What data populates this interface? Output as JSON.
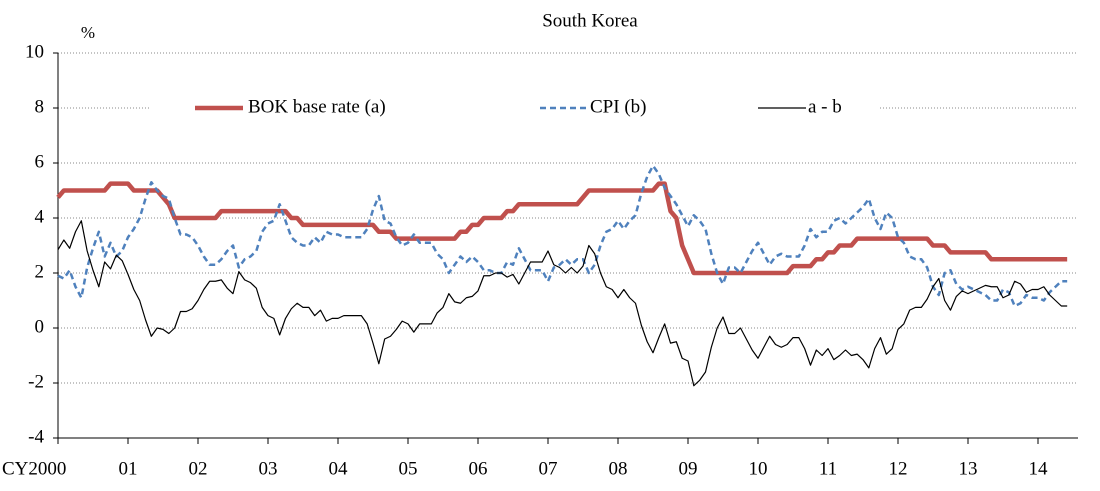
{
  "chart_data": {
    "type": "line",
    "title": "South Korea",
    "y_label": "%",
    "categories": [
      "CY2000",
      null,
      null,
      null,
      null,
      null,
      null,
      null,
      null,
      null,
      null,
      null,
      "01",
      null,
      null,
      null,
      null,
      null,
      null,
      null,
      null,
      null,
      null,
      null,
      "02",
      null,
      null,
      null,
      null,
      null,
      null,
      null,
      null,
      null,
      null,
      null,
      "03",
      null,
      null,
      null,
      null,
      null,
      null,
      null,
      null,
      null,
      null,
      null,
      "04",
      null,
      null,
      null,
      null,
      null,
      null,
      null,
      null,
      null,
      null,
      null,
      "05",
      null,
      null,
      null,
      null,
      null,
      null,
      null,
      null,
      null,
      null,
      null,
      "06",
      null,
      null,
      null,
      null,
      null,
      null,
      null,
      null,
      null,
      null,
      null,
      "07",
      null,
      null,
      null,
      null,
      null,
      null,
      null,
      null,
      null,
      null,
      null,
      "08",
      null,
      null,
      null,
      null,
      null,
      null,
      null,
      null,
      null,
      null,
      null,
      "09",
      null,
      null,
      null,
      null,
      null,
      null,
      null,
      null,
      null,
      null,
      null,
      "10",
      null,
      null,
      null,
      null,
      null,
      null,
      null,
      null,
      null,
      null,
      null,
      "11",
      null,
      null,
      null,
      null,
      null,
      null,
      null,
      null,
      null,
      null,
      null,
      "12",
      null,
      null,
      null,
      null,
      null,
      null,
      null,
      null,
      null,
      null,
      null,
      "13",
      null,
      null,
      null,
      null,
      null,
      null,
      null,
      null,
      null,
      null,
      null,
      "14",
      null,
      null,
      null,
      null,
      null
    ],
    "series": [
      {
        "name": "BOK base rate (a)",
        "color": "#c0504d",
        "style": "solid",
        "width": 4.5,
        "values": [
          4.75,
          5,
          5,
          5,
          5,
          5,
          5,
          5,
          5,
          5.25,
          5.25,
          5.25,
          5.25,
          5,
          5,
          5,
          5,
          5,
          4.75,
          4.5,
          4,
          4,
          4,
          4,
          4,
          4,
          4,
          4,
          4.25,
          4.25,
          4.25,
          4.25,
          4.25,
          4.25,
          4.25,
          4.25,
          4.25,
          4.25,
          4.25,
          4.25,
          4,
          4,
          3.75,
          3.75,
          3.75,
          3.75,
          3.75,
          3.75,
          3.75,
          3.75,
          3.75,
          3.75,
          3.75,
          3.75,
          3.75,
          3.5,
          3.5,
          3.5,
          3.25,
          3.25,
          3.25,
          3.25,
          3.25,
          3.25,
          3.25,
          3.25,
          3.25,
          3.25,
          3.25,
          3.5,
          3.5,
          3.75,
          3.75,
          4,
          4,
          4,
          4,
          4.25,
          4.25,
          4.5,
          4.5,
          4.5,
          4.5,
          4.5,
          4.5,
          4.5,
          4.5,
          4.5,
          4.5,
          4.5,
          4.75,
          5,
          5,
          5,
          5,
          5,
          5,
          5,
          5,
          5,
          5,
          5,
          5,
          5.25,
          5.25,
          4.25,
          4,
          3,
          2.5,
          2,
          2,
          2,
          2,
          2,
          2,
          2,
          2,
          2,
          2,
          2,
          2,
          2,
          2,
          2,
          2,
          2,
          2.25,
          2.25,
          2.25,
          2.25,
          2.5,
          2.5,
          2.75,
          2.75,
          3,
          3,
          3,
          3.25,
          3.25,
          3.25,
          3.25,
          3.25,
          3.25,
          3.25,
          3.25,
          3.25,
          3.25,
          3.25,
          3.25,
          3.25,
          3,
          3,
          3,
          2.75,
          2.75,
          2.75,
          2.75,
          2.75,
          2.75,
          2.75,
          2.5,
          2.5,
          2.5,
          2.5,
          2.5,
          2.5,
          2.5,
          2.5,
          2.5,
          2.5,
          2.5,
          2.5,
          2.5,
          2.5
        ]
      },
      {
        "name": "CPI (b)",
        "color": "#4f81bd",
        "style": "dashed",
        "width": 2.5,
        "values": [
          1.9,
          1.8,
          2.1,
          1.5,
          1.1,
          2.2,
          2.9,
          3.5,
          2.6,
          3.1,
          2.6,
          2.8,
          3.3,
          3.6,
          4.0,
          4.7,
          5.3,
          5.0,
          4.8,
          4.7,
          4.0,
          3.4,
          3.4,
          3.3,
          3.0,
          2.6,
          2.3,
          2.3,
          2.5,
          2.8,
          3.0,
          2.2,
          2.5,
          2.6,
          2.8,
          3.5,
          3.8,
          3.9,
          4.5,
          3.9,
          3.3,
          3.1,
          3.0,
          3.0,
          3.3,
          3.1,
          3.5,
          3.4,
          3.4,
          3.3,
          3.3,
          3.3,
          3.3,
          3.6,
          4.3,
          4.8,
          3.9,
          3.8,
          3.3,
          3.0,
          3.1,
          3.4,
          3.1,
          3.1,
          3.1,
          2.7,
          2.5,
          2.0,
          2.3,
          2.6,
          2.4,
          2.6,
          2.4,
          2.1,
          2.1,
          2.0,
          2.0,
          2.4,
          2.3,
          2.9,
          2.5,
          2.1,
          2.1,
          2.1,
          1.7,
          2.2,
          2.3,
          2.5,
          2.3,
          2.5,
          2.5,
          2.0,
          2.3,
          3.0,
          3.5,
          3.6,
          3.9,
          3.6,
          3.9,
          4.1,
          4.9,
          5.5,
          5.9,
          5.6,
          5.1,
          4.8,
          4.5,
          4.1,
          3.7,
          4.1,
          3.9,
          3.6,
          2.7,
          2.0,
          1.6,
          2.2,
          2.2,
          2.0,
          2.4,
          2.8,
          3.1,
          2.7,
          2.3,
          2.6,
          2.7,
          2.6,
          2.6,
          2.6,
          3.0,
          3.6,
          3.3,
          3.5,
          3.5,
          3.9,
          4.0,
          3.8,
          4.0,
          4.2,
          4.4,
          4.7,
          4.0,
          3.6,
          4.2,
          4.0,
          3.3,
          3.1,
          2.6,
          2.5,
          2.5,
          2.2,
          1.5,
          1.2,
          2.0,
          2.1,
          1.6,
          1.4,
          1.5,
          1.4,
          1.3,
          1.2,
          1.0,
          1.0,
          1.4,
          1.3,
          0.8,
          0.9,
          1.2,
          1.1,
          1.1,
          1.0,
          1.3,
          1.5,
          1.7,
          1.7
        ]
      },
      {
        "name": "a - b",
        "color": "#000000",
        "style": "solid",
        "width": 1.2,
        "values": [
          2.85,
          3.2,
          2.9,
          3.5,
          3.9,
          2.8,
          2.1,
          1.5,
          2.4,
          2.15,
          2.65,
          2.45,
          1.95,
          1.4,
          1.0,
          0.3,
          -0.3,
          0,
          -0.05,
          -0.2,
          0,
          0.6,
          0.6,
          0.7,
          1.0,
          1.4,
          1.7,
          1.7,
          1.75,
          1.45,
          1.25,
          2.05,
          1.75,
          1.65,
          1.45,
          0.75,
          0.45,
          0.35,
          -0.25,
          0.35,
          0.7,
          0.9,
          0.75,
          0.75,
          0.45,
          0.65,
          0.25,
          0.35,
          0.35,
          0.45,
          0.45,
          0.45,
          0.45,
          0.15,
          -0.55,
          -1.3,
          -0.4,
          -0.3,
          -0.05,
          0.25,
          0.15,
          -0.15,
          0.15,
          0.15,
          0.15,
          0.55,
          0.75,
          1.25,
          0.95,
          0.9,
          1.1,
          1.15,
          1.35,
          1.9,
          1.9,
          2.0,
          2.0,
          1.85,
          1.95,
          1.6,
          2.0,
          2.4,
          2.4,
          2.4,
          2.8,
          2.3,
          2.2,
          2.0,
          2.2,
          2.0,
          2.25,
          3.0,
          2.7,
          2.0,
          1.5,
          1.4,
          1.1,
          1.4,
          1.1,
          0.9,
          0.1,
          -0.5,
          -0.9,
          -0.35,
          0.15,
          -0.55,
          -0.5,
          -1.1,
          -1.2,
          -2.1,
          -1.9,
          -1.6,
          -0.7,
          0,
          0.4,
          -0.2,
          -0.2,
          0,
          -0.4,
          -0.8,
          -1.1,
          -0.7,
          -0.3,
          -0.6,
          -0.7,
          -0.6,
          -0.35,
          -0.35,
          -0.75,
          -1.35,
          -0.8,
          -1.0,
          -0.75,
          -1.15,
          -1.0,
          -0.8,
          -1.0,
          -0.95,
          -1.15,
          -1.45,
          -0.75,
          -0.35,
          -0.95,
          -0.75,
          -0.05,
          0.15,
          0.65,
          0.75,
          0.75,
          1.05,
          1.5,
          1.8,
          1.0,
          0.65,
          1.15,
          1.35,
          1.25,
          1.35,
          1.45,
          1.55,
          1.5,
          1.5,
          1.1,
          1.2,
          1.7,
          1.6,
          1.3,
          1.4,
          1.4,
          1.5,
          1.2,
          1.0,
          0.8,
          0.8
        ]
      }
    ],
    "ylim": [
      -4,
      10
    ],
    "yticks": [
      -4,
      -2,
      0,
      2,
      4,
      6,
      8,
      10
    ],
    "grid": true,
    "legend": "top"
  }
}
